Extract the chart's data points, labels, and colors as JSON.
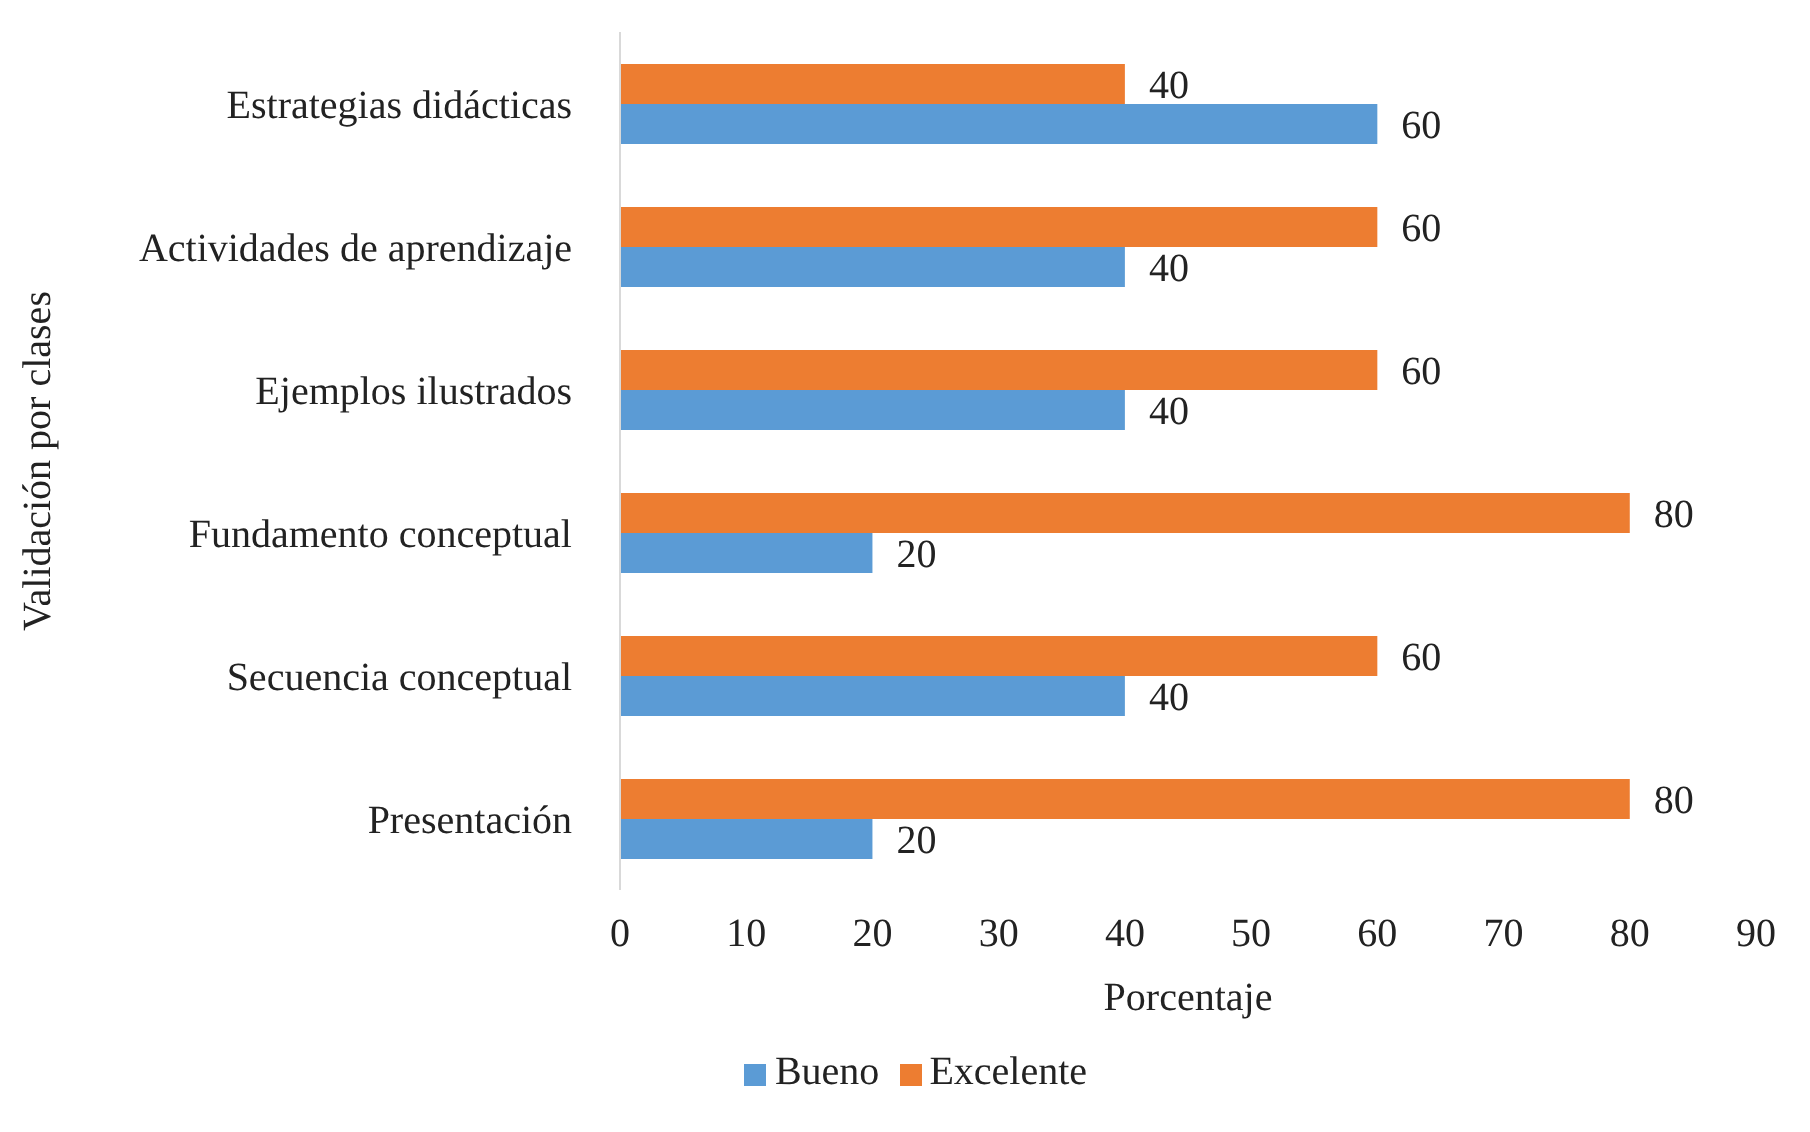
{
  "chart_data": {
    "type": "bar",
    "orientation": "horizontal",
    "xlabel": "Porcentaje",
    "ylabel": "Validación por clases",
    "categories": [
      "Estrategias didácticas",
      "Actividades de aprendizaje",
      "Ejemplos ilustrados",
      "Fundamento conceptual",
      "Secuencia conceptual",
      "Presentación"
    ],
    "series": [
      {
        "name": "Excelente",
        "color": "#ed7d31",
        "values": [
          40,
          60,
          60,
          80,
          60,
          80
        ]
      },
      {
        "name": "Bueno",
        "color": "#5b9bd5",
        "values": [
          60,
          40,
          40,
          20,
          40,
          20
        ]
      }
    ],
    "xlim": [
      0,
      90
    ],
    "xticks": [
      0,
      10,
      20,
      30,
      40,
      50,
      60,
      70,
      80,
      90
    ],
    "data_labels": true,
    "legend": "bottom",
    "grid": false
  }
}
